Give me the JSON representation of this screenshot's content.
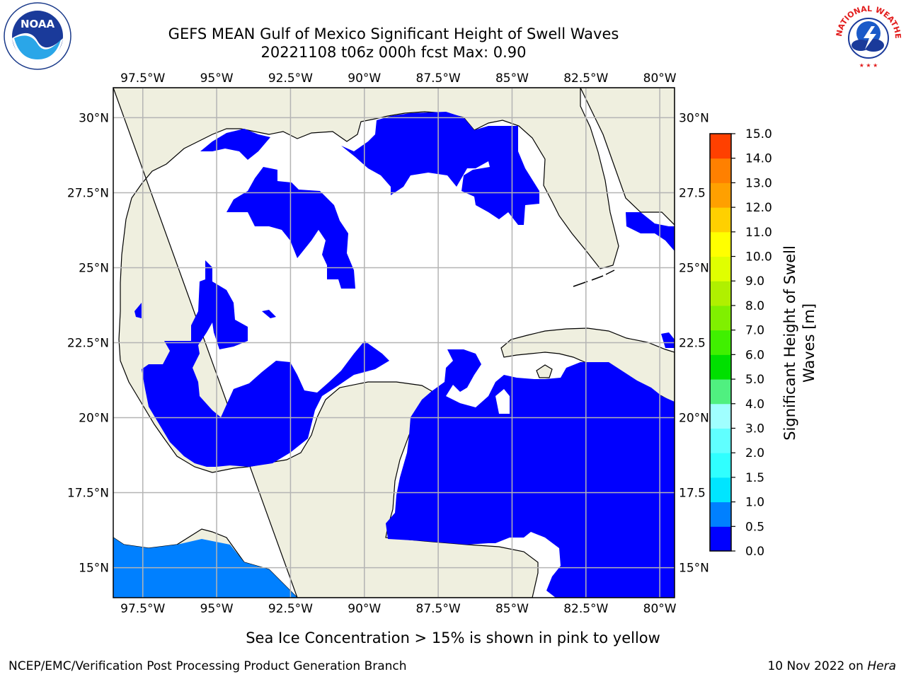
{
  "title": {
    "line1": "GEFS MEAN Gulf of Mexico Significant Height of Swell Waves",
    "line2": "20221108 t06z 000h fcst   Max: 0.90"
  },
  "map": {
    "lon_range": [
      -98.5,
      -79.5
    ],
    "lat_range": [
      14,
      31
    ],
    "lon_ticks": [
      "97.5°W",
      "95°W",
      "92.5°W",
      "90°W",
      "87.5°W",
      "85°W",
      "82.5°W",
      "80°W"
    ],
    "lat_ticks_left": [
      "30°N",
      "27.5°N",
      "25°N",
      "22.5°N",
      "20°N",
      "17.5°N",
      "15°N"
    ],
    "lat_ticks_right": [
      "30°N",
      "27.5",
      "25°N",
      "22.5",
      "20°N",
      "17.5",
      "15°N"
    ],
    "gridlines": true,
    "colors": {
      "land": "#efefdf",
      "ocean_low": "#0000ff",
      "ocean_med": "#0080ff",
      "grid": "#b4b4b4",
      "coast": "#000000"
    }
  },
  "colorbar": {
    "label_line1": "Significant Height of Swell",
    "label_line2": "Waves [m]",
    "ticks": [
      "0.0",
      "0.5",
      "1.0",
      "1.5",
      "2.0",
      "3.0",
      "4.0",
      "5.0",
      "6.0",
      "7.0",
      "8.0",
      "9.0",
      "10.0",
      "11.0",
      "12.0",
      "13.0",
      "14.0",
      "15.0"
    ],
    "colors": [
      "#0000ff",
      "#0080ff",
      "#00e5ff",
      "#30ffff",
      "#60ffff",
      "#a0ffff",
      "#50f080",
      "#00e000",
      "#40f000",
      "#80f000",
      "#b0f000",
      "#e0ff00",
      "#ffff00",
      "#ffd000",
      "#ffa000",
      "#ff8000",
      "#ff4000",
      "#ff0000"
    ]
  },
  "note": "Sea Ice Concentration > 15% is shown in pink to yellow",
  "footer": {
    "left": "NCEP/EMC/Verification Post Processing Product Generation Branch",
    "date": "10 Nov 2022 on ",
    "host": "Hera"
  },
  "logos": {
    "noaa": "NOAA",
    "nws_ring": "NATIONAL WEATHER SERVICE"
  }
}
